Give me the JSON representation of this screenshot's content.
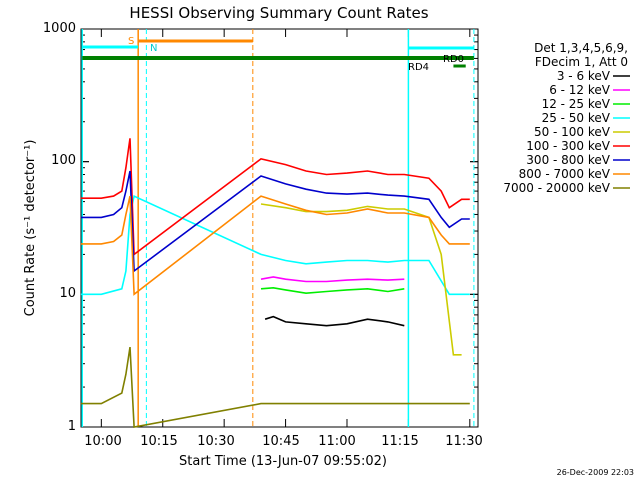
{
  "chart_data": {
    "type": "line",
    "title": "HESSI Observing Summary Count Rates",
    "xlabel": "Start Time (13-Jun-07 09:55:02)",
    "ylabel": "Count Rate (s⁻¹ detector⁻¹)",
    "x_ticks": [
      "10:00",
      "10:15",
      "10:30",
      "10:45",
      "11:00",
      "11:15",
      "11:30"
    ],
    "y_ticks": [
      "1",
      "10",
      "100",
      "1000"
    ],
    "ylim": [
      1,
      1000
    ],
    "y_scale": "log",
    "xlim": [
      "09:55:02",
      "11:32"
    ],
    "legend": {
      "header": [
        "Det 1,3,4,5,6,9,",
        "FDecim 1, Att 0"
      ],
      "placement": "right"
    },
    "series": [
      {
        "name": "3 - 6 keV",
        "color": "#000000",
        "x": [
          "10:38",
          "10:40",
          "10:42",
          "10:45",
          "10:50",
          "10:55",
          "11:00",
          "11:05",
          "11:10",
          "11:14",
          "11:16",
          "11:17"
        ],
        "values": [
          null,
          6.5,
          6.8,
          6.2,
          6.0,
          5.8,
          6.0,
          6.5,
          6.2,
          5.8,
          null,
          null
        ]
      },
      {
        "name": "6 - 12 keV",
        "color": "#ff00ff",
        "x": [
          "10:39",
          "10:42",
          "10:45",
          "10:50",
          "10:55",
          "11:00",
          "11:05",
          "11:10",
          "11:14"
        ],
        "values": [
          13,
          13.5,
          13,
          12.5,
          12.5,
          12.8,
          13,
          12.8,
          13
        ]
      },
      {
        "name": "12 - 25 keV",
        "color": "#00ee00",
        "x": [
          "10:39",
          "10:42",
          "10:45",
          "10:50",
          "10:55",
          "11:00",
          "11:05",
          "11:10",
          "11:14"
        ],
        "values": [
          11,
          11.2,
          10.8,
          10.2,
          10.5,
          10.8,
          11,
          10.5,
          11
        ]
      },
      {
        "name": "25 - 50 keV",
        "color": "#00ffff",
        "x": [
          "09:55",
          "10:00",
          "10:05",
          "10:06",
          "10:07",
          "10:08",
          "10:39",
          "10:45",
          "10:50",
          "10:55",
          "11:00",
          "11:05",
          "11:10",
          "11:14",
          "11:15",
          "11:20",
          "11:25",
          "11:28",
          "11:30"
        ],
        "values": [
          10,
          10,
          11,
          15,
          40,
          55,
          20,
          18,
          17,
          17.5,
          18,
          18,
          17.5,
          18,
          18,
          18,
          10,
          10,
          10
        ]
      },
      {
        "name": "50 - 100 keV",
        "color": "#cccc00",
        "x": [
          "10:39",
          "10:45",
          "10:50",
          "10:55",
          "11:00",
          "11:05",
          "11:10",
          "11:14",
          "11:20",
          "11:23",
          "11:26",
          "11:28"
        ],
        "values": [
          48,
          45,
          42,
          42,
          43,
          46,
          44,
          44,
          38,
          20,
          3.5,
          3.5
        ]
      },
      {
        "name": "100 - 300 keV",
        "color": "#ff0000",
        "x": [
          "09:55",
          "10:00",
          "10:03",
          "10:05",
          "10:06",
          "10:07",
          "10:08",
          "10:39",
          "10:45",
          "10:50",
          "10:55",
          "11:00",
          "11:05",
          "11:10",
          "11:14",
          "11:20",
          "11:23",
          "11:25",
          "11:28",
          "11:30"
        ],
        "values": [
          53,
          53,
          55,
          60,
          90,
          150,
          20,
          105,
          95,
          85,
          80,
          82,
          85,
          80,
          80,
          75,
          60,
          45,
          52,
          52
        ]
      },
      {
        "name": "300 - 800 keV",
        "color": "#0000cc",
        "x": [
          "09:55",
          "10:00",
          "10:03",
          "10:05",
          "10:06",
          "10:07",
          "10:08",
          "10:39",
          "10:45",
          "10:50",
          "10:55",
          "11:00",
          "11:05",
          "11:10",
          "11:14",
          "11:20",
          "11:23",
          "11:25",
          "11:28",
          "11:30"
        ],
        "values": [
          38,
          38,
          40,
          45,
          60,
          85,
          15,
          78,
          68,
          62,
          58,
          57,
          58,
          56,
          55,
          52,
          38,
          32,
          37,
          37
        ]
      },
      {
        "name": "800 - 7000 keV",
        "color": "#ff8800",
        "x": [
          "09:55",
          "10:00",
          "10:03",
          "10:05",
          "10:06",
          "10:07",
          "10:08",
          "10:39",
          "10:45",
          "10:50",
          "10:55",
          "11:00",
          "11:05",
          "11:10",
          "11:14",
          "11:20",
          "11:23",
          "11:25",
          "11:28",
          "11:30"
        ],
        "values": [
          24,
          24,
          25,
          28,
          40,
          55,
          10,
          55,
          48,
          43,
          40,
          41,
          44,
          41,
          41,
          38,
          28,
          24,
          24,
          24
        ]
      },
      {
        "name": "7000 - 20000 keV",
        "color": "#808000",
        "x": [
          "09:55",
          "10:00",
          "10:05",
          "10:06",
          "10:07",
          "10:08",
          "10:39",
          "10:50",
          "11:00",
          "11:10",
          "11:20",
          "11:30"
        ],
        "values": [
          1.5,
          1.5,
          1.8,
          2.5,
          4,
          1,
          1.5,
          1.5,
          1.5,
          1.5,
          1.5,
          1.5
        ]
      }
    ],
    "annotations": [
      {
        "label": "S",
        "color": "#ff8800"
      },
      {
        "label": "N",
        "color": "#00ffff"
      },
      {
        "label": "RD0",
        "color": "#00ffff"
      },
      {
        "label": "RD4",
        "color": "#008000"
      }
    ],
    "footer_date": "26-Dec-2009 22:03"
  }
}
